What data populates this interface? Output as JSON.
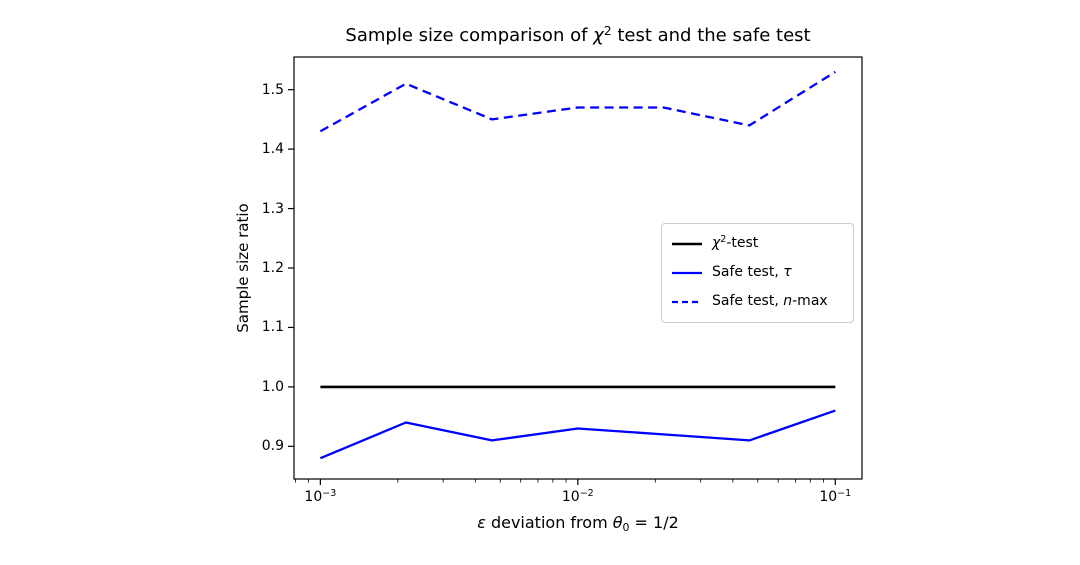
{
  "page": {
    "background": "#ffffff"
  },
  "chart_data": {
    "type": "line",
    "x_scale": "log",
    "grid": false,
    "title": "Sample size comparison of χ² test and the safe test",
    "title_parts": {
      "pre": "Sample size comparison of ",
      "chi": "χ",
      "sup": "2",
      "post": " test and the safe test"
    },
    "xlabel": "ε deviation from θ₀ = 1/2",
    "xlabel_parts": {
      "epsilon": "ε",
      "mid": " deviation from ",
      "theta": "θ",
      "theta_sub": "0",
      "eq": " = 1/2"
    },
    "ylabel": "Sample size ratio",
    "x": [
      0.001,
      0.00215,
      0.00464,
      0.01,
      0.0215,
      0.0464,
      0.1
    ],
    "series": [
      {
        "key": "chi2_test",
        "name": "χ²-test",
        "color": "#000000",
        "width": 2.6,
        "dash": "",
        "values": [
          1.0,
          1.0,
          1.0,
          1.0,
          1.0,
          1.0,
          1.0
        ]
      },
      {
        "key": "safe_test_tau",
        "name": "Safe test, τ",
        "color": "#0000ff",
        "width": 2.3,
        "dash": "",
        "values": [
          0.88,
          0.94,
          0.91,
          0.93,
          0.92,
          0.91,
          0.96
        ]
      },
      {
        "key": "safe_test_nmax",
        "name": "Safe test, n-max",
        "color": "#0000ff",
        "width": 2.3,
        "dash": "9 5.5",
        "values": [
          1.43,
          1.51,
          1.45,
          1.47,
          1.47,
          1.44,
          1.53
        ]
      }
    ],
    "xlim": [
      0.00079,
      0.127
    ],
    "ylim": [
      0.845,
      1.555
    ],
    "y_ticks": [
      0.9,
      1.0,
      1.1,
      1.2,
      1.3,
      1.4,
      1.5
    ],
    "x_major_ticks": [
      0.001,
      0.01,
      0.1
    ],
    "x_tick_labels": [
      {
        "base": "10",
        "exp": "−3"
      },
      {
        "base": "10",
        "exp": "−2"
      },
      {
        "base": "10",
        "exp": "−1"
      }
    ],
    "legend_position": "center right",
    "legend_items": [
      {
        "pre": "",
        "math": "χ",
        "sup": "2",
        "post": "-test",
        "color": "#000000",
        "width": 2.6,
        "dash": ""
      },
      {
        "pre": "Safe test, ",
        "math": "τ",
        "sup": "",
        "post": "",
        "color": "#0000ff",
        "width": 2.3,
        "dash": ""
      },
      {
        "pre": "Safe test, ",
        "math": "n",
        "sup": "",
        "post": "-max",
        "color": "#0000ff",
        "width": 2.3,
        "dash": "6 4"
      }
    ]
  }
}
